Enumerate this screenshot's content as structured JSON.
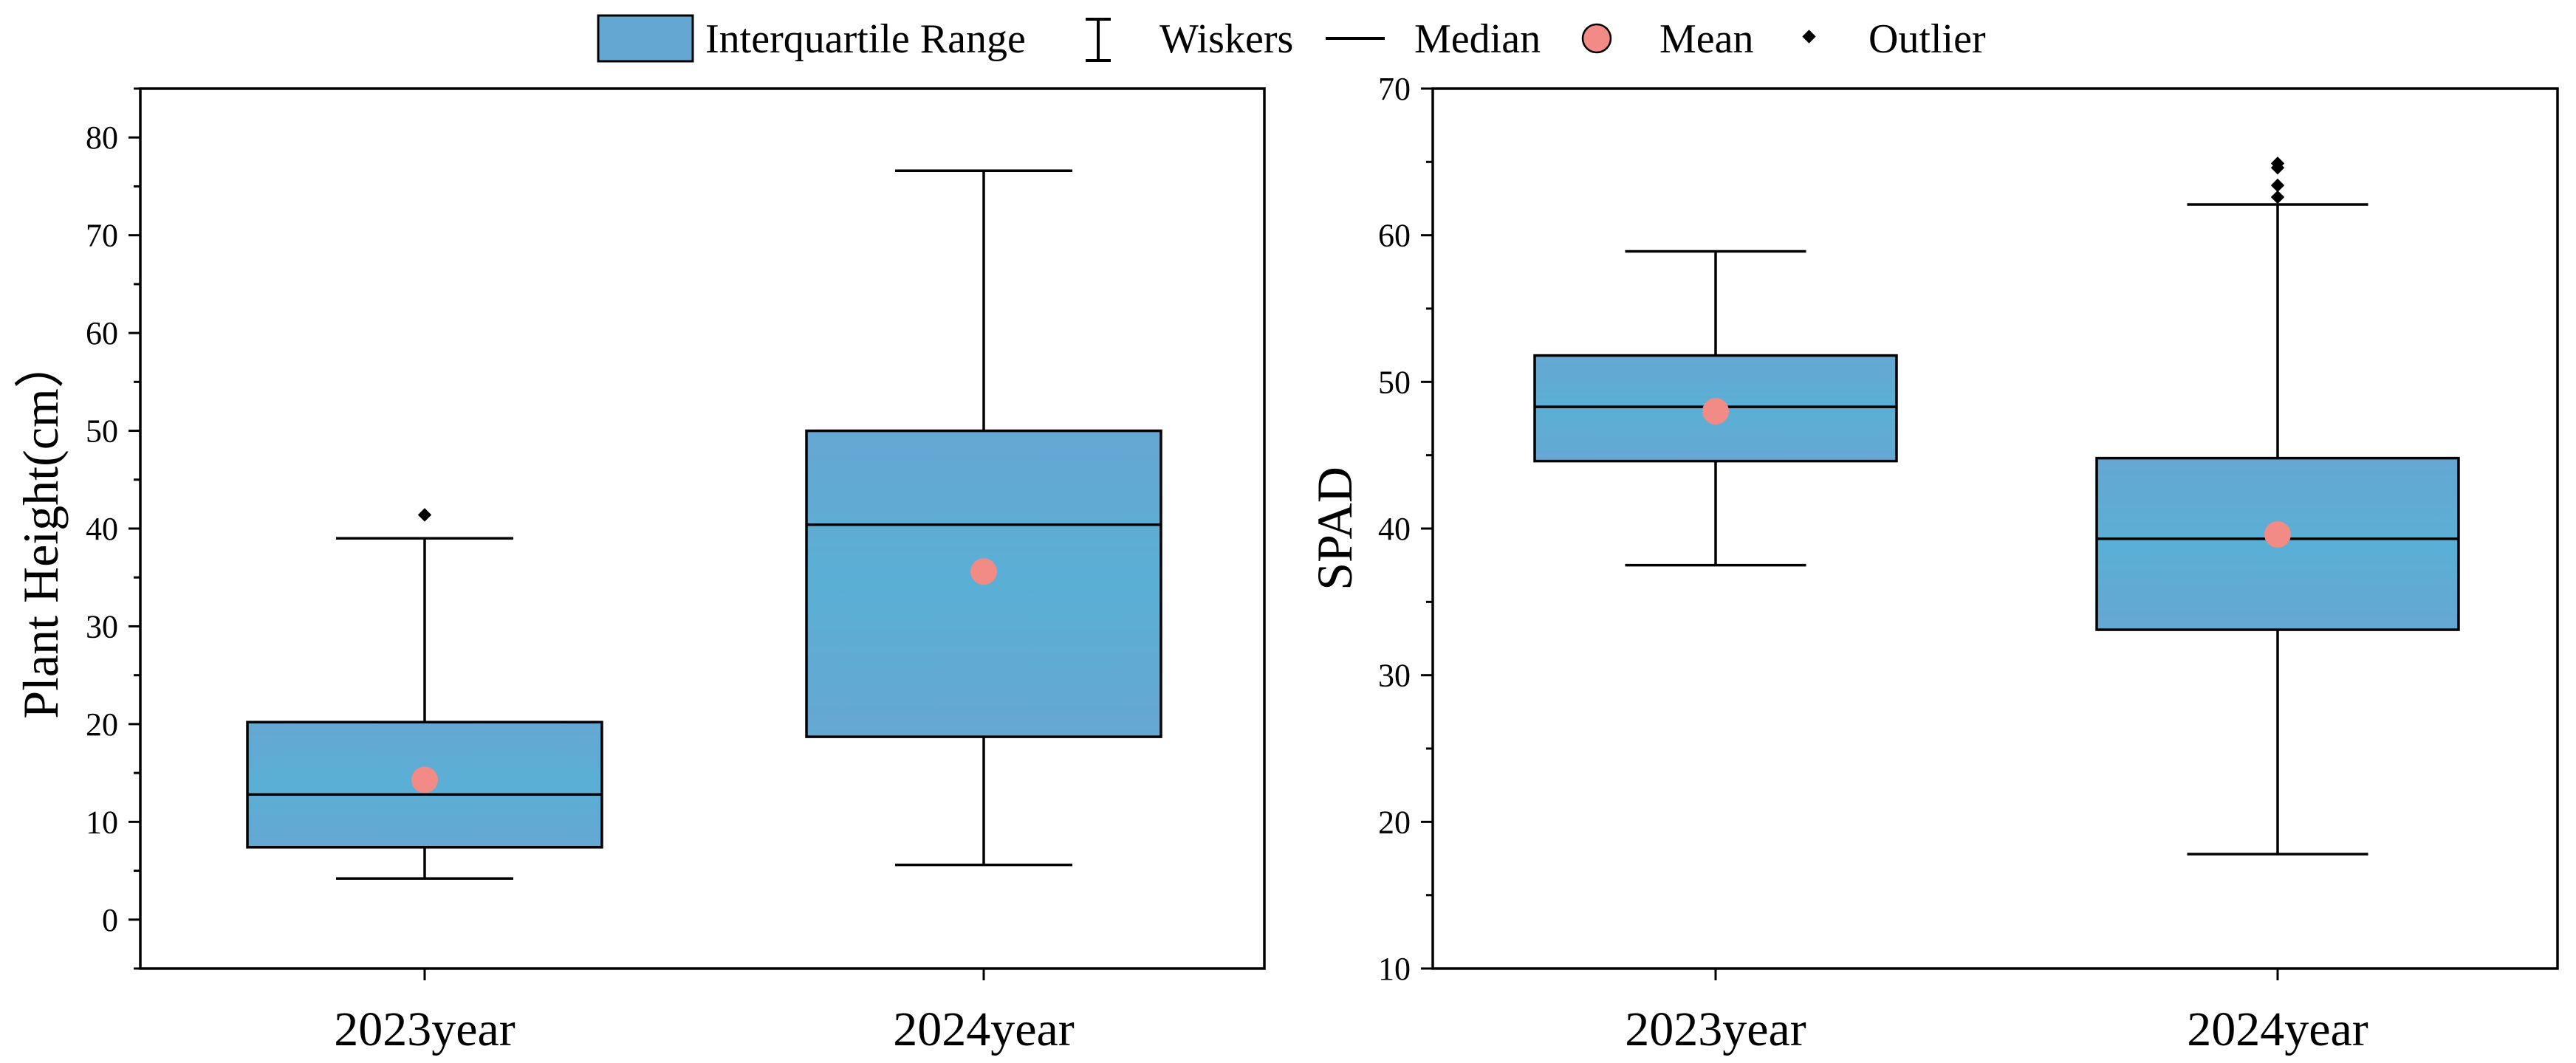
{
  "legend": {
    "iqr": "Interquartile Range",
    "whiskers": "Wiskers",
    "median": "Median",
    "mean": "Mean",
    "outlier": "Outlier"
  },
  "colors": {
    "box_fill": "#65a7d3",
    "box_fill_center": "#5aafd5",
    "mean": "#f28a86",
    "line": "#000000"
  },
  "chart_data": [
    {
      "type": "box",
      "ylabel": "Plant Height(cm）",
      "xlabel": "",
      "ylim": [
        -5,
        85
      ],
      "yticks": [
        0,
        10,
        20,
        30,
        40,
        50,
        60,
        70,
        80
      ],
      "categories": [
        "2023year",
        "2024year"
      ],
      "boxes": [
        {
          "whisker_low": 4.2,
          "q1": 7.4,
          "median": 12.8,
          "q3": 20.2,
          "whisker_high": 39.0,
          "mean": 14.3,
          "outliers": [
            41.4
          ]
        },
        {
          "whisker_low": 5.6,
          "q1": 18.7,
          "median": 40.4,
          "q3": 50.0,
          "whisker_high": 76.6,
          "mean": 35.6,
          "outliers": []
        }
      ]
    },
    {
      "type": "box",
      "ylabel": "SPAD",
      "xlabel": "",
      "ylim": [
        10,
        70
      ],
      "yticks": [
        10,
        20,
        30,
        40,
        50,
        60,
        70
      ],
      "categories": [
        "2023year",
        "2024year"
      ],
      "boxes": [
        {
          "whisker_low": 37.5,
          "q1": 44.6,
          "median": 48.3,
          "q3": 51.8,
          "whisker_high": 58.9,
          "mean": 48.0,
          "outliers": []
        },
        {
          "whisker_low": 17.8,
          "q1": 33.1,
          "median": 39.3,
          "q3": 44.8,
          "whisker_high": 62.1,
          "mean": 39.6,
          "outliers": [
            62.6,
            63.4,
            64.6,
            64.9
          ]
        }
      ]
    }
  ]
}
